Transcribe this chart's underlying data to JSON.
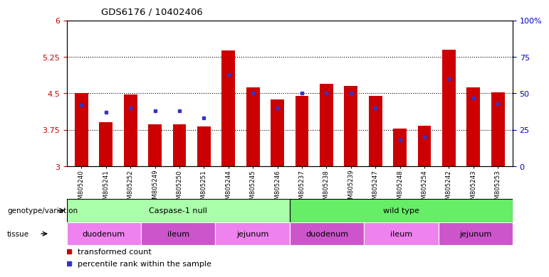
{
  "title": "GDS6176 / 10402406",
  "samples": [
    "GSM805240",
    "GSM805241",
    "GSM805252",
    "GSM805249",
    "GSM805250",
    "GSM805251",
    "GSM805244",
    "GSM805245",
    "GSM805246",
    "GSM805237",
    "GSM805238",
    "GSM805239",
    "GSM805247",
    "GSM805248",
    "GSM805254",
    "GSM805242",
    "GSM805243",
    "GSM805253"
  ],
  "red_values": [
    4.5,
    3.9,
    4.47,
    3.87,
    3.87,
    3.82,
    5.38,
    4.62,
    4.38,
    4.45,
    4.7,
    4.65,
    4.45,
    3.78,
    3.83,
    5.4,
    4.62,
    4.52
  ],
  "blue_values": [
    42,
    37,
    40,
    38,
    38,
    33,
    63,
    50,
    40,
    50,
    50,
    50,
    40,
    18,
    20,
    60,
    47,
    43
  ],
  "ylim_left": [
    3.0,
    6.0
  ],
  "ylim_right": [
    0,
    100
  ],
  "yticks_left": [
    3.0,
    3.75,
    4.5,
    5.25,
    6.0
  ],
  "ytick_labels_left": [
    "3",
    "3.75",
    "4.5",
    "5.25",
    "6"
  ],
  "yticks_right": [
    0,
    25,
    50,
    75,
    100
  ],
  "ytick_labels_right": [
    "0",
    "25",
    "50",
    "75",
    "100%"
  ],
  "hlines": [
    3.75,
    4.5,
    5.25
  ],
  "bar_color": "#cc0000",
  "blue_color": "#3333cc",
  "bar_width": 0.55,
  "genotype_groups": [
    {
      "label": "Caspase-1 null",
      "start": 0,
      "end": 9,
      "color": "#aaffaa"
    },
    {
      "label": "wild type",
      "start": 9,
      "end": 18,
      "color": "#66ee66"
    }
  ],
  "tissue_groups": [
    {
      "label": "duodenum",
      "start": 0,
      "end": 3,
      "color": "#ee82ee"
    },
    {
      "label": "ileum",
      "start": 3,
      "end": 6,
      "color": "#cc55cc"
    },
    {
      "label": "jejunum",
      "start": 6,
      "end": 9,
      "color": "#ee82ee"
    },
    {
      "label": "duodenum",
      "start": 9,
      "end": 12,
      "color": "#cc55cc"
    },
    {
      "label": "ileum",
      "start": 12,
      "end": 15,
      "color": "#ee82ee"
    },
    {
      "label": "jejunum",
      "start": 15,
      "end": 18,
      "color": "#cc55cc"
    }
  ],
  "legend_items": [
    {
      "label": "transformed count",
      "color": "#cc0000"
    },
    {
      "label": "percentile rank within the sample",
      "color": "#3333cc"
    }
  ],
  "axis_label_color_left": "#cc0000",
  "axis_label_color_right": "#0000cc",
  "genotype_label": "genotype/variation",
  "tissue_label": "tissue"
}
